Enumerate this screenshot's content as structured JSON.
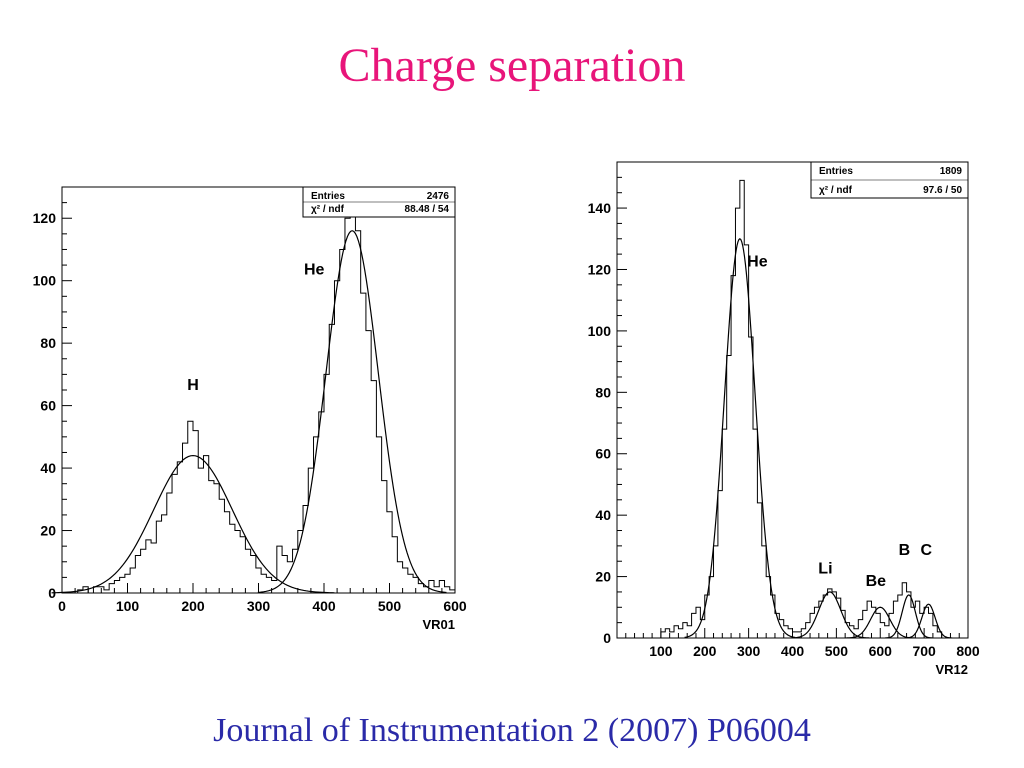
{
  "slide": {
    "title": "Charge separation",
    "footer": "Journal of Instrumentation 2 (2007) P06004"
  },
  "chart_data": [
    {
      "type": "histogram",
      "xlabel": "VR01",
      "ylabel": "",
      "xlim": [
        0,
        600
      ],
      "ylim": [
        0,
        130
      ],
      "xticks": [
        0,
        100,
        200,
        300,
        400,
        500,
        600
      ],
      "yticks": [
        0,
        20,
        40,
        60,
        80,
        100,
        120
      ],
      "stats": {
        "entries_label": "Entries",
        "entries": "2476",
        "chi2_label": "χ² / ndf",
        "chi2": "88.48 / 54"
      },
      "bin_width": 8,
      "bins": {
        "x": [
          16,
          24,
          32,
          40,
          48,
          56,
          64,
          72,
          80,
          88,
          96,
          104,
          112,
          120,
          128,
          136,
          144,
          152,
          160,
          168,
          176,
          184,
          192,
          200,
          208,
          216,
          224,
          232,
          240,
          248,
          256,
          264,
          272,
          280,
          288,
          296,
          304,
          312,
          320,
          328,
          336,
          344,
          352,
          360,
          368,
          376,
          384,
          392,
          400,
          408,
          416,
          424,
          432,
          440,
          448,
          456,
          464,
          472,
          480,
          488,
          496,
          504,
          512,
          520,
          528,
          536,
          544,
          552,
          560,
          568,
          576,
          584,
          592
        ],
        "y": [
          0,
          1,
          2,
          0,
          2,
          2,
          1,
          3,
          4,
          5,
          6,
          8,
          12,
          14,
          17,
          16,
          23,
          25,
          32,
          38,
          42,
          48,
          55,
          52,
          40,
          44,
          36,
          35,
          30,
          26,
          22,
          20,
          18,
          14,
          12,
          8,
          6,
          5,
          4,
          15,
          12,
          10,
          14,
          20,
          28,
          40,
          50,
          58,
          70,
          86,
          100,
          110,
          120,
          127,
          116,
          96,
          84,
          68,
          50,
          36,
          26,
          18,
          10,
          8,
          6,
          5,
          3,
          2,
          4,
          2,
          4,
          2,
          1
        ]
      },
      "fits": [
        {
          "name": "",
          "amplitude": 44,
          "mean": 200,
          "sigma": 60
        },
        {
          "name": "",
          "amplitude": 116,
          "mean": 443,
          "sigma": 40
        }
      ],
      "annotations": [
        {
          "text": "H",
          "x": 200,
          "y": 65
        },
        {
          "text": "He",
          "x": 385,
          "y": 102
        }
      ]
    },
    {
      "type": "histogram",
      "xlabel": "VR12",
      "ylabel": "",
      "xlim": [
        0,
        800
      ],
      "ylim": [
        0,
        155
      ],
      "xticks": [
        100,
        200,
        300,
        400,
        500,
        600,
        700,
        800
      ],
      "yticks": [
        0,
        20,
        40,
        60,
        80,
        100,
        120,
        140
      ],
      "stats": {
        "entries_label": "Entries",
        "entries": "1809",
        "chi2_label": "χ² / ndf",
        "chi2": "97.6 / 50"
      },
      "bin_width": 10,
      "bins": {
        "x": [
          100,
          110,
          120,
          130,
          140,
          150,
          160,
          170,
          180,
          190,
          200,
          210,
          220,
          230,
          240,
          250,
          260,
          270,
          280,
          290,
          300,
          310,
          320,
          330,
          340,
          350,
          360,
          370,
          380,
          390,
          400,
          410,
          420,
          430,
          440,
          450,
          460,
          470,
          480,
          490,
          500,
          510,
          520,
          530,
          540,
          550,
          560,
          570,
          580,
          590,
          600,
          610,
          620,
          630,
          640,
          650,
          660,
          670,
          680,
          690,
          700,
          710,
          720,
          730
        ],
        "y": [
          2,
          3,
          2,
          4,
          3,
          5,
          4,
          8,
          10,
          6,
          14,
          20,
          30,
          48,
          68,
          92,
          118,
          140,
          149,
          128,
          98,
          68,
          44,
          30,
          20,
          14,
          8,
          6,
          4,
          3,
          2,
          2,
          3,
          5,
          8,
          10,
          12,
          14,
          16,
          15,
          13,
          9,
          5,
          4,
          3,
          6,
          9,
          12,
          10,
          8,
          5,
          4,
          8,
          12,
          14,
          18,
          15,
          10,
          12,
          8,
          10,
          8,
          4,
          2
        ]
      },
      "fits": [
        {
          "name": "",
          "amplitude": 130,
          "mean": 280,
          "sigma": 35
        },
        {
          "name": "",
          "amplitude": 15,
          "mean": 485,
          "sigma": 25
        },
        {
          "name": "",
          "amplitude": 10,
          "mean": 600,
          "sigma": 22
        },
        {
          "name": "",
          "amplitude": 14,
          "mean": 665,
          "sigma": 15
        },
        {
          "name": "",
          "amplitude": 11,
          "mean": 710,
          "sigma": 15
        }
      ],
      "annotations": [
        {
          "text": "He",
          "x": 320,
          "y": 121
        },
        {
          "text": "Li",
          "x": 475,
          "y": 21
        },
        {
          "text": "Be",
          "x": 590,
          "y": 17
        },
        {
          "text": "B",
          "x": 655,
          "y": 27
        },
        {
          "text": "C",
          "x": 705,
          "y": 27
        }
      ]
    }
  ]
}
